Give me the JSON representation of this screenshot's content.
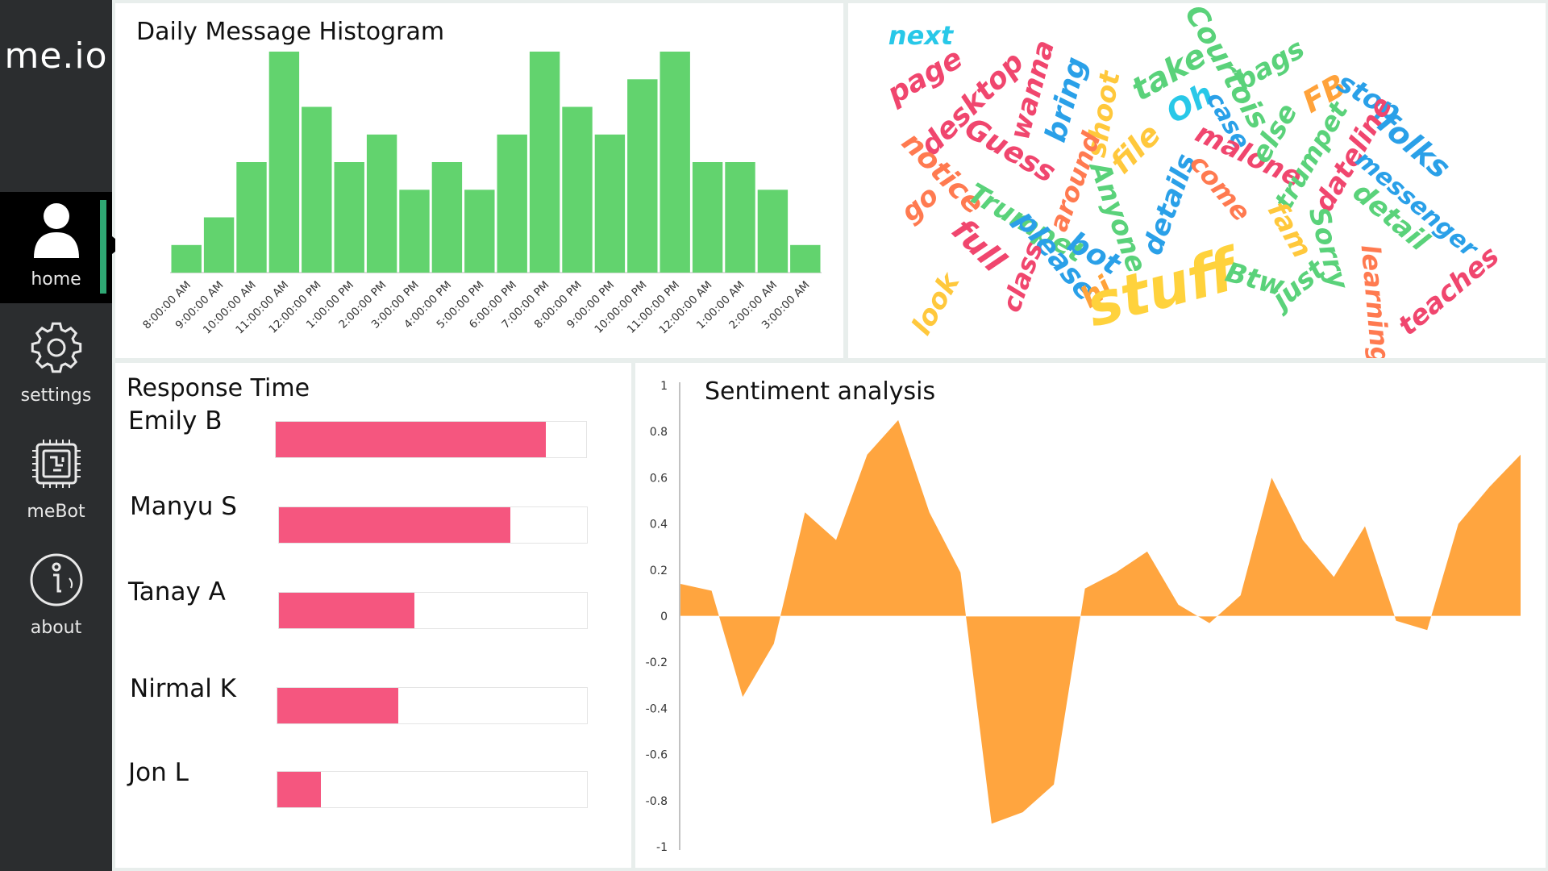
{
  "app": {
    "brand": "me.io"
  },
  "nav": [
    {
      "id": "home",
      "label": "home",
      "icon": "user-icon",
      "active": true
    },
    {
      "id": "settings",
      "label": "settings",
      "icon": "gear-icon",
      "active": false
    },
    {
      "id": "mebot",
      "label": "meBot",
      "icon": "chip-icon",
      "active": false
    },
    {
      "id": "about",
      "label": "about",
      "icon": "info-icon",
      "active": false
    }
  ],
  "histogram": {
    "title": "Daily Message Histogram",
    "color": "#62d36e",
    "chart_data": {
      "type": "bar",
      "categories": [
        "8:00:00 AM",
        "9:00:00 AM",
        "10:00:00 AM",
        "11:00:00 AM",
        "12:00:00 PM",
        "1:00:00 PM",
        "2:00:00 PM",
        "3:00:00 PM",
        "4:00:00 PM",
        "5:00:00 PM",
        "6:00:00 PM",
        "7:00:00 PM",
        "8:00:00 PM",
        "9:00:00 PM",
        "10:00:00 PM",
        "11:00:00 PM",
        "12:00:00 AM",
        "1:00:00 AM",
        "2:00:00 AM",
        "3:00:00 AM"
      ],
      "values": [
        1,
        2,
        4,
        8,
        6,
        4,
        5,
        3,
        4,
        3,
        5,
        8,
        6,
        5,
        7,
        8,
        4,
        4,
        3,
        1
      ],
      "ylim": [
        0,
        8
      ]
    }
  },
  "wordcloud": {
    "words": [
      {
        "text": "next",
        "color": "#28c8e8"
      },
      {
        "text": "page",
        "color": "#f0466e"
      },
      {
        "text": "desktop",
        "color": "#f0466e"
      },
      {
        "text": "wanna",
        "color": "#f0466e"
      },
      {
        "text": "bring",
        "color": "#2aa0e8"
      },
      {
        "text": "shoot",
        "color": "#ffc83c"
      },
      {
        "text": "take",
        "color": "#5ad27a"
      },
      {
        "text": "Courtois",
        "color": "#5ad27a"
      },
      {
        "text": "bags",
        "color": "#5ad27a"
      },
      {
        "text": "Oh",
        "color": "#28c8e8"
      },
      {
        "text": "case",
        "color": "#2aa0e8"
      },
      {
        "text": "FB",
        "color": "#ffa23a"
      },
      {
        "text": "stop",
        "color": "#2aa0e8"
      },
      {
        "text": "Guess",
        "color": "#f0466e"
      },
      {
        "text": "notice",
        "color": "#ff7a50"
      },
      {
        "text": "go",
        "color": "#ff7a50"
      },
      {
        "text": "around",
        "color": "#ff7a50"
      },
      {
        "text": "file",
        "color": "#ffc83c"
      },
      {
        "text": "malone",
        "color": "#f0466e"
      },
      {
        "text": "else",
        "color": "#5ad27a"
      },
      {
        "text": "trumpet",
        "color": "#5ad27a"
      },
      {
        "text": "dateline",
        "color": "#f0466e"
      },
      {
        "text": "folks",
        "color": "#2aa0e8"
      },
      {
        "text": "messenger",
        "color": "#2aa0e8"
      },
      {
        "text": "Trumpet",
        "color": "#5ad27a"
      },
      {
        "text": "full",
        "color": "#f0466e"
      },
      {
        "text": "please",
        "color": "#2aa0e8"
      },
      {
        "text": "Anyone",
        "color": "#5ad27a"
      },
      {
        "text": "details",
        "color": "#2aa0e8"
      },
      {
        "text": "come",
        "color": "#ff7a50"
      },
      {
        "text": "fam",
        "color": "#ffc83c"
      },
      {
        "text": "Sorry",
        "color": "#5ad27a"
      },
      {
        "text": "detail",
        "color": "#5ad27a"
      },
      {
        "text": "bot",
        "color": "#2aa0e8"
      },
      {
        "text": "class",
        "color": "#f0466e"
      },
      {
        "text": "look",
        "color": "#ffc83c"
      },
      {
        "text": "hi",
        "color": "#ffa23a"
      },
      {
        "text": "stuff",
        "color": "#ffd23c"
      },
      {
        "text": "Btw",
        "color": "#5ad27a"
      },
      {
        "text": "just",
        "color": "#5ad27a"
      },
      {
        "text": "learning",
        "color": "#ff7a50"
      },
      {
        "text": "teaches",
        "color": "#f0466e"
      }
    ]
  },
  "response_time": {
    "title": "Response Time",
    "color": "#f5567f",
    "rows": [
      {
        "name": "Emily B",
        "value": 0.87
      },
      {
        "name": "Manyu S",
        "value": 0.75
      },
      {
        "name": "Tanay A",
        "value": 0.44
      },
      {
        "name": "Nirmal K",
        "value": 0.39
      },
      {
        "name": "Jon L",
        "value": 0.14
      }
    ]
  },
  "sentiment": {
    "title": "Sentiment analysis",
    "color": "#ffa53f",
    "chart_data": {
      "type": "area",
      "ylim": [
        -1,
        1
      ],
      "yticks": [
        "1",
        "0.8",
        "0.6",
        "0.4",
        "0.2",
        "0",
        "-0.2",
        "-0.4",
        "-0.6",
        "-0.8",
        "-1"
      ],
      "values": [
        0.14,
        0.11,
        -0.35,
        -0.12,
        0.45,
        0.33,
        0.7,
        0.85,
        0.45,
        0.19,
        -0.9,
        -0.85,
        -0.73,
        0.12,
        0.19,
        0.28,
        0.05,
        -0.03,
        0.09,
        0.6,
        0.33,
        0.17,
        0.39,
        -0.02,
        -0.06,
        0.4,
        0.56,
        0.7
      ],
      "grid": false
    }
  }
}
